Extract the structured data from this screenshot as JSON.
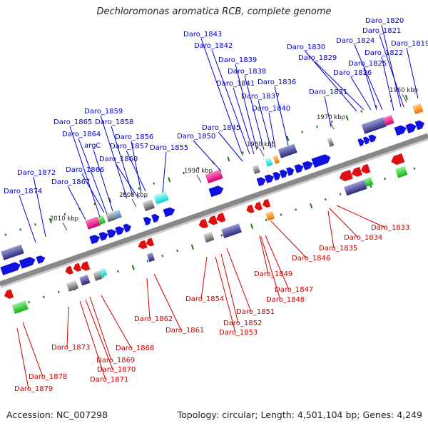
{
  "title": "Dechloromonas aromatica RCB, complete genome",
  "accession": "Accession: NC_007298",
  "summary": "Topology: circular; Length: 4,501,104 bp; Genes: 4,249",
  "colors": {
    "forward": "#1010e0",
    "reverse": "#e01010",
    "backbone": "#888888",
    "tick": "#1a7a1a",
    "label_forward": "#0000cc",
    "label_reverse": "#cc0000"
  },
  "scale_labels": [
    "1960 kbp",
    "1970 kbp",
    "1980 kbp",
    "1990 kbp",
    "2000 kbp",
    "2010 kbp"
  ],
  "gene_labels_forward": [
    "Daro_1820",
    "Daro_1821",
    "Daro_1819",
    "Daro_1822",
    "Daro_1824",
    "Daro_1825",
    "Daro_1826",
    "Daro_1830",
    "Daro_1829",
    "Daro_1831",
    "Daro_1843",
    "Daro_1842",
    "Daro_1839",
    "Daro_1838",
    "Daro_1841",
    "Daro_1837",
    "Daro_1836",
    "Daro_1840",
    "Daro_1845",
    "Daro_1850",
    "Daro_1859",
    "Daro_1858",
    "Daro_1865",
    "Daro_1864",
    "argC",
    "Daro_1856",
    "Daro_1857",
    "Daro_1860",
    "Daro_1855",
    "Daro_1866",
    "Daro_1872",
    "Daro_1867",
    "Daro_1874"
  ],
  "gene_labels_reverse": [
    "Daro_1833",
    "Daro_1834",
    "Daro_1835",
    "Daro_1846",
    "Daro_1849",
    "Daro_1847",
    "Daro_1848",
    "Daro_1854",
    "Daro_1851",
    "Daro_1852",
    "Daro_1853",
    "Daro_1862",
    "Daro_1861",
    "Daro_1873",
    "Daro_1868",
    "Daro_1869",
    "Daro_1870",
    "Daro_1871",
    "Daro_1878",
    "Daro_1879"
  ]
}
